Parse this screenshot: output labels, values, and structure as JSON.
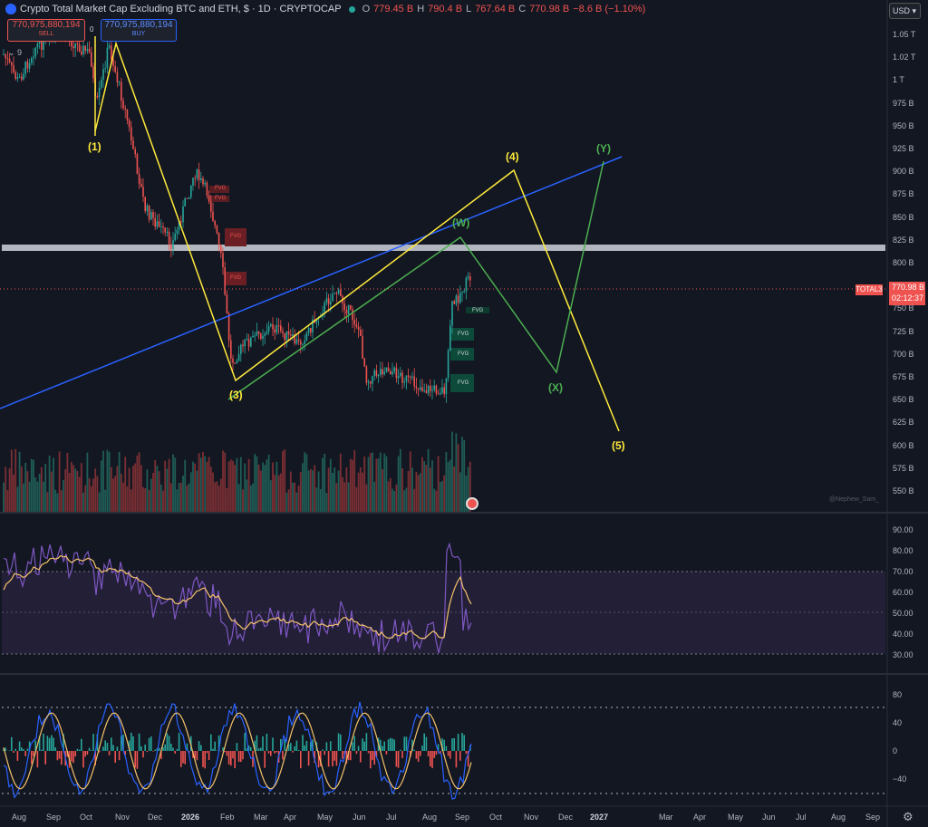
{
  "header": {
    "title": "Crypto Total Market Cap Excluding BTC and ETH, $ · 1D · CRYPTOCAP",
    "open_label": "O",
    "open": "779.45 B",
    "high_label": "H",
    "high": "790.4 B",
    "low_label": "L",
    "low": "767.64 B",
    "close_label": "C",
    "close": "770.98 B",
    "change": "−8.6 B (−1.10%)"
  },
  "trade": {
    "sell_price": "770,975,880,194",
    "sell_label": "SELL",
    "buy_price": "770,975,880,194",
    "buy_label": "BUY",
    "spread": "0"
  },
  "indicators_toggle": "9",
  "currency": "USD",
  "price_axis": [
    "1.05 T",
    "1.02 T",
    "1 T",
    "975 B",
    "950 B",
    "925 B",
    "900 B",
    "875 B",
    "850 B",
    "825 B",
    "800 B",
    "775 B",
    "750 B",
    "725 B",
    "700 B",
    "675 B",
    "650 B",
    "625 B",
    "600 B",
    "575 B",
    "550 B"
  ],
  "current_price": {
    "symbol": "TOTAL3",
    "price": "770.98 B",
    "countdown": "02:12:37"
  },
  "rsi_axis": [
    "90.00",
    "80.00",
    "70.00",
    "60.00",
    "50.00",
    "40.00",
    "30.00"
  ],
  "osc_axis": [
    "80",
    "40",
    "0",
    "−40"
  ],
  "time_axis": [
    "Aug",
    "Sep",
    "Oct",
    "Nov",
    "Dec",
    "2026",
    "Feb",
    "Mar",
    "Apr",
    "May",
    "Jun",
    "Jul",
    "Aug",
    "Sep",
    "Oct",
    "Nov",
    "Dec",
    "2027",
    "Mar",
    "Apr",
    "May",
    "Jun",
    "Jul",
    "Aug",
    "Sep"
  ],
  "waves": {
    "w1": "(1)",
    "w3": "(3)",
    "w4": "(4)",
    "w5": "(5)",
    "wW": "(W)",
    "wX": "(X)",
    "wY": "(Y)"
  },
  "fvg_label": "FVG",
  "watermark": "@Nephew_Sam_",
  "colors": {
    "background": "#131722",
    "up": "#26a69a",
    "down": "#ef5350",
    "impulse_wave": "#ffeb3b",
    "correction_wave": "#4caf50",
    "trendline": "#2962ff",
    "rsi": "#7e57c2",
    "rsi_ma": "#f5c26b"
  }
}
